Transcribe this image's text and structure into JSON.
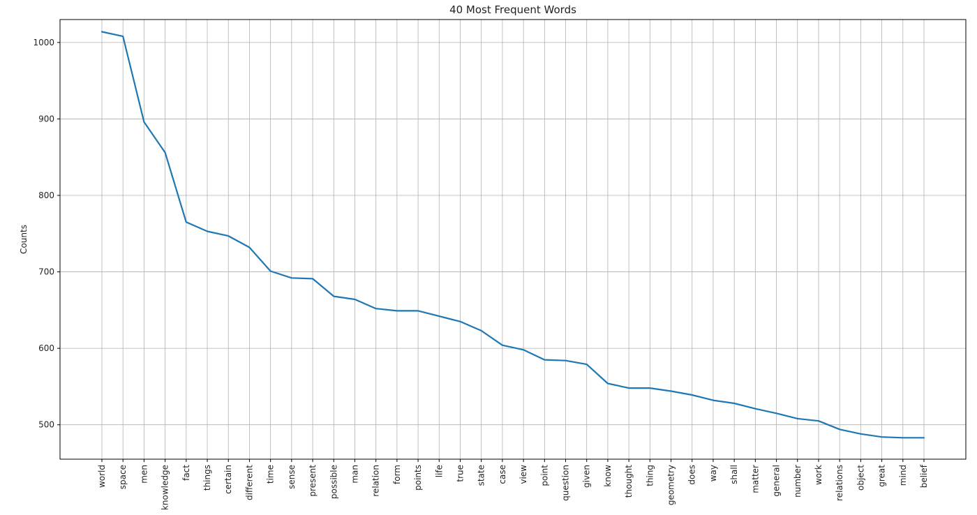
{
  "chart_data": {
    "type": "line",
    "title": "40 Most Frequent Words",
    "xlabel": "",
    "ylabel": "Counts",
    "grid": true,
    "ylim": [
      455,
      1030
    ],
    "yticks": [
      500,
      600,
      700,
      800,
      900,
      1000
    ],
    "categories": [
      "world",
      "space",
      "men",
      "knowledge",
      "fact",
      "things",
      "certain",
      "different",
      "time",
      "sense",
      "present",
      "possible",
      "man",
      "relation",
      "form",
      "points",
      "life",
      "true",
      "state",
      "case",
      "view",
      "point",
      "question",
      "given",
      "know",
      "thought",
      "thing",
      "geometry",
      "does",
      "way",
      "shall",
      "matter",
      "general",
      "number",
      "work",
      "relations",
      "object",
      "great",
      "mind",
      "belief"
    ],
    "series": [
      {
        "color": "#1f77b4",
        "values": [
          1014,
          1008,
          896,
          856,
          765,
          753,
          747,
          732,
          701,
          692,
          691,
          668,
          664,
          652,
          649,
          649,
          642,
          635,
          623,
          604,
          598,
          585,
          584,
          579,
          554,
          548,
          548,
          544,
          539,
          532,
          528,
          521,
          515,
          508,
          505,
          494,
          488,
          484,
          483,
          483
        ]
      }
    ]
  }
}
